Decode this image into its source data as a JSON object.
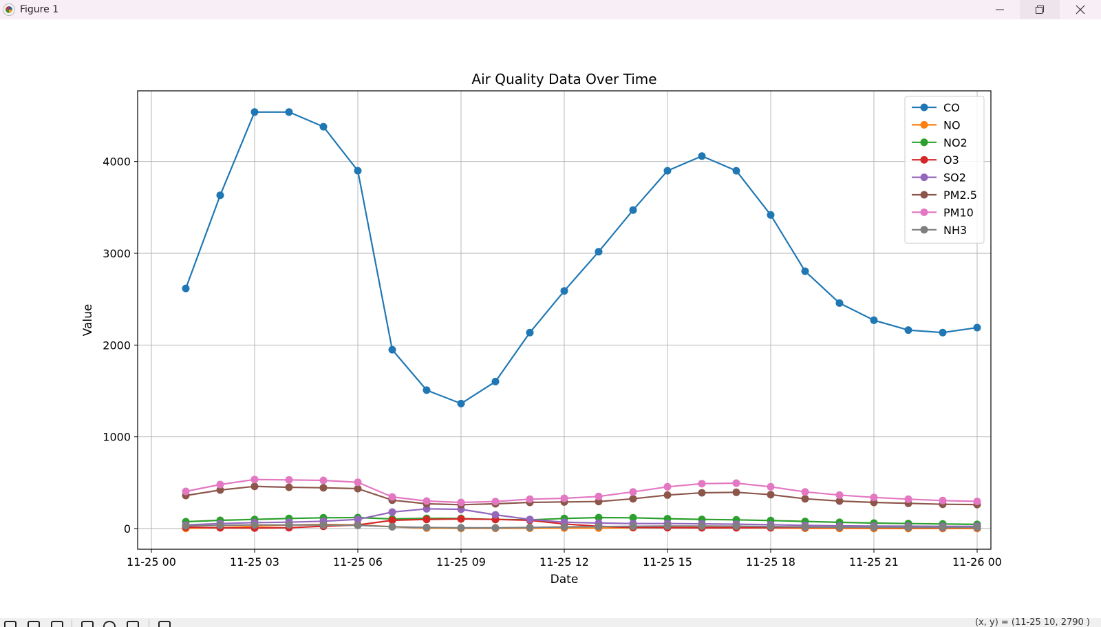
{
  "window": {
    "title": "Figure 1",
    "minimize_icon": "minimize-icon",
    "maximize_icon": "restore-icon",
    "close_icon": "close-icon"
  },
  "toolbar": {
    "icons": [
      "home-icon",
      "back-icon",
      "forward-icon",
      "pan-icon",
      "zoom-icon",
      "subplots-icon",
      "save-icon"
    ],
    "coords_text": "(x, y) = (11-25 10, 2790 )"
  },
  "chart_data": {
    "type": "line",
    "title": "Air Quality Data Over Time",
    "xlabel": "Date",
    "ylabel": "Value",
    "x": [
      "11-25 01:00",
      "11-25 02:00",
      "11-25 03:00",
      "11-25 04:00",
      "11-25 05:00",
      "11-25 06:00",
      "11-25 07:00",
      "11-25 08:00",
      "11-25 09:00",
      "11-25 10:00",
      "11-25 11:00",
      "11-25 12:00",
      "11-25 13:00",
      "11-25 14:00",
      "11-25 15:00",
      "11-25 16:00",
      "11-25 17:00",
      "11-25 18:00",
      "11-25 19:00",
      "11-25 20:00",
      "11-25 21:00",
      "11-25 22:00",
      "11-25 23:00",
      "11-26 00:00"
    ],
    "xlim_hours": [
      -0.4,
      24.4
    ],
    "xticks": [
      {
        "hour": 0,
        "label": "11-25 00"
      },
      {
        "hour": 3,
        "label": "11-25 03"
      },
      {
        "hour": 6,
        "label": "11-25 06"
      },
      {
        "hour": 9,
        "label": "11-25 09"
      },
      {
        "hour": 12,
        "label": "11-25 12"
      },
      {
        "hour": 15,
        "label": "11-25 15"
      },
      {
        "hour": 18,
        "label": "11-25 18"
      },
      {
        "hour": 21,
        "label": "11-25 21"
      },
      {
        "hour": 24,
        "label": "11-26 00"
      }
    ],
    "ylim": [
      -225,
      4770
    ],
    "yticks": [
      0,
      1000,
      2000,
      3000,
      4000
    ],
    "grid": true,
    "legend_position": "top-right",
    "series": [
      {
        "name": "CO",
        "color": "#1f77b4",
        "values": [
          2617,
          3632,
          4539,
          4539,
          4379,
          3899,
          1949,
          1508,
          1362,
          1602,
          2136,
          2590,
          3017,
          3471,
          3899,
          4059,
          3899,
          3418,
          2804,
          2457,
          2270,
          2163,
          2136,
          2190
        ]
      },
      {
        "name": "NO",
        "color": "#ff7f0e",
        "values": [
          2,
          10,
          25,
          40,
          45,
          40,
          20,
          5,
          2,
          3,
          4,
          6,
          5,
          10,
          15,
          15,
          12,
          8,
          4,
          2,
          1,
          1,
          1,
          1
        ]
      },
      {
        "name": "NO2",
        "color": "#2ca02c",
        "values": [
          75,
          90,
          100,
          110,
          118,
          120,
          105,
          112,
          110,
          100,
          95,
          110,
          120,
          118,
          108,
          100,
          95,
          88,
          78,
          68,
          60,
          55,
          50,
          46
        ]
      },
      {
        "name": "O3",
        "color": "#d62728",
        "values": [
          15,
          8,
          6,
          10,
          25,
          40,
          90,
          100,
          105,
          100,
          90,
          50,
          25,
          12,
          10,
          8,
          8,
          10,
          12,
          12,
          12,
          10,
          10,
          10
        ]
      },
      {
        "name": "SO2",
        "color": "#9467bd",
        "values": [
          40,
          55,
          65,
          70,
          80,
          100,
          180,
          215,
          210,
          150,
          100,
          70,
          60,
          55,
          55,
          52,
          48,
          42,
          35,
          30,
          28,
          26,
          25,
          25
        ]
      },
      {
        "name": "PM2.5",
        "color": "#8c564b",
        "values": [
          360,
          420,
          460,
          450,
          445,
          435,
          310,
          270,
          260,
          270,
          285,
          290,
          295,
          325,
          365,
          390,
          395,
          370,
          325,
          300,
          285,
          275,
          265,
          262
        ]
      },
      {
        "name": "PM10",
        "color": "#e377c2",
        "values": [
          405,
          480,
          535,
          530,
          525,
          505,
          345,
          300,
          285,
          295,
          320,
          330,
          350,
          400,
          455,
          490,
          495,
          455,
          400,
          365,
          340,
          320,
          305,
          296
        ]
      },
      {
        "name": "NH3",
        "color": "#7f7f7f",
        "values": [
          30,
          35,
          40,
          40,
          38,
          35,
          20,
          12,
          8,
          8,
          12,
          18,
          22,
          25,
          28,
          28,
          26,
          22,
          18,
          15,
          14,
          13,
          12,
          12
        ]
      }
    ]
  }
}
